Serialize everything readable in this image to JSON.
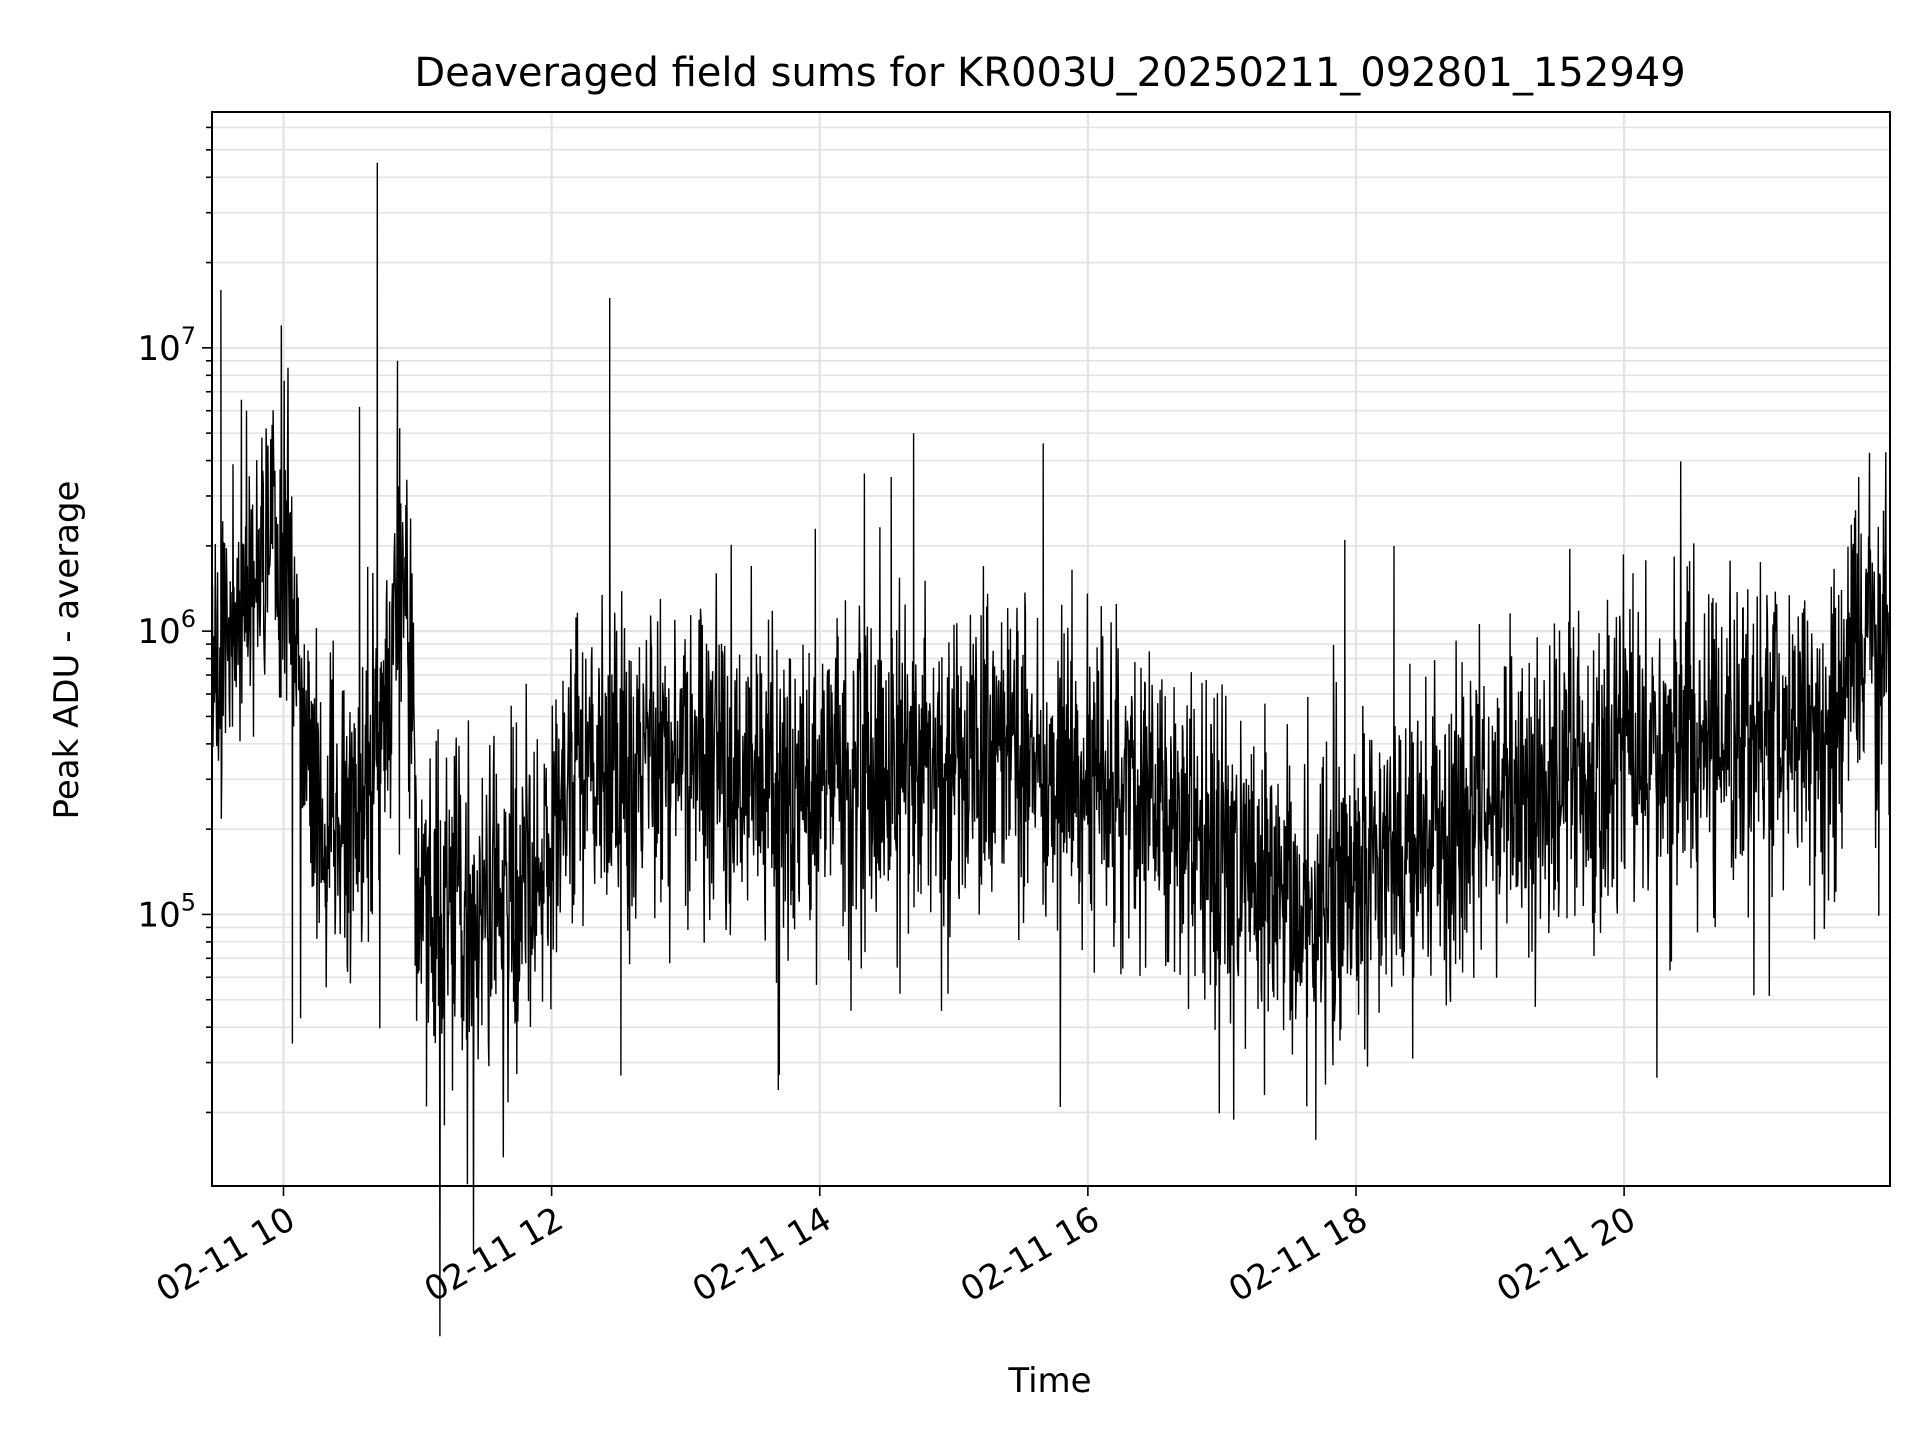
{
  "chart_data": {
    "type": "line",
    "title": "Deaveraged field sums for KR003U_20250211_092801_152949",
    "xlabel": "Time",
    "ylabel": "Peak ADU - average",
    "x_axis_type": "time",
    "y_scale": "log",
    "xlim": [
      "2025-02-11T09:28",
      "2025-02-11T21:59"
    ],
    "ylim": [
      11000,
      68000000
    ],
    "grid": true,
    "legend": "none",
    "x_ticks": [
      {
        "t": "2025-02-11T10:00",
        "label": "02-11 10"
      },
      {
        "t": "2025-02-11T12:00",
        "label": "02-11 12"
      },
      {
        "t": "2025-02-11T14:00",
        "label": "02-11 14"
      },
      {
        "t": "2025-02-11T16:00",
        "label": "02-11 16"
      },
      {
        "t": "2025-02-11T18:00",
        "label": "02-11 18"
      },
      {
        "t": "2025-02-11T20:00",
        "label": "02-11 20"
      }
    ],
    "y_ticks": [
      {
        "value": 100000,
        "base": "10",
        "exp": "5"
      },
      {
        "value": 1000000,
        "base": "10",
        "exp": "6"
      },
      {
        "value": 10000000,
        "base": "10",
        "exp": "7"
      }
    ],
    "series": [
      {
        "color": "#000000",
        "noise_decades": 0.6,
        "baseline": [
          {
            "t": "2025-02-11T09:28",
            "y": 700000
          },
          {
            "t": "2025-02-11T09:40",
            "y": 1200000
          },
          {
            "t": "2025-02-11T09:55",
            "y": 2500000
          },
          {
            "t": "2025-02-11T10:05",
            "y": 1300000
          },
          {
            "t": "2025-02-11T10:10",
            "y": 300000
          },
          {
            "t": "2025-02-11T10:30",
            "y": 200000
          },
          {
            "t": "2025-02-11T10:45",
            "y": 450000
          },
          {
            "t": "2025-02-11T10:55",
            "y": 1500000
          },
          {
            "t": "2025-02-11T11:00",
            "y": 120000
          },
          {
            "t": "2025-02-11T11:30",
            "y": 100000
          },
          {
            "t": "2025-02-11T11:55",
            "y": 150000
          },
          {
            "t": "2025-02-11T12:10",
            "y": 350000
          },
          {
            "t": "2025-02-11T13:00",
            "y": 400000
          },
          {
            "t": "2025-02-11T13:45",
            "y": 280000
          },
          {
            "t": "2025-02-11T14:30",
            "y": 330000
          },
          {
            "t": "2025-02-11T15:30",
            "y": 330000
          },
          {
            "t": "2025-02-11T16:20",
            "y": 280000
          },
          {
            "t": "2025-02-11T17:00",
            "y": 180000
          },
          {
            "t": "2025-02-11T17:40",
            "y": 100000
          },
          {
            "t": "2025-02-11T18:30",
            "y": 180000
          },
          {
            "t": "2025-02-11T19:30",
            "y": 280000
          },
          {
            "t": "2025-02-11T20:30",
            "y": 450000
          },
          {
            "t": "2025-02-11T21:30",
            "y": 420000
          },
          {
            "t": "2025-02-11T21:45",
            "y": 900000
          },
          {
            "t": "2025-02-11T21:59",
            "y": 1000000
          }
        ],
        "spikes": [
          {
            "t": "2025-02-11T09:32",
            "y": 16000000
          },
          {
            "t": "2025-02-11T09:59",
            "y": 12000000
          },
          {
            "t": "2025-02-11T10:04",
            "y": 35000
          },
          {
            "t": "2025-02-11T10:34",
            "y": 6200000
          },
          {
            "t": "2025-02-11T10:38",
            "y": 80000
          },
          {
            "t": "2025-02-11T10:42",
            "y": 45000000
          },
          {
            "t": "2025-02-11T10:51",
            "y": 9000000
          },
          {
            "t": "2025-02-11T10:52",
            "y": 5200000
          },
          {
            "t": "2025-02-11T11:04",
            "y": 21000
          },
          {
            "t": "2025-02-11T11:12",
            "y": 18000
          },
          {
            "t": "2025-02-11T12:26",
            "y": 15000000
          },
          {
            "t": "2025-02-11T12:26",
            "y": 6000000
          },
          {
            "t": "2025-02-11T12:31",
            "y": 27000
          },
          {
            "t": "2025-02-11T13:58",
            "y": 2300000
          },
          {
            "t": "2025-02-11T14:20",
            "y": 3600000
          },
          {
            "t": "2025-02-11T14:32",
            "y": 3500000
          },
          {
            "t": "2025-02-11T14:42",
            "y": 5000000
          },
          {
            "t": "2025-02-11T15:40",
            "y": 4600000
          },
          {
            "t": "2025-02-11T17:38",
            "y": 21000
          },
          {
            "t": "2025-02-11T17:42",
            "y": 16000
          },
          {
            "t": "2025-02-11T17:55",
            "y": 2100000
          },
          {
            "t": "2025-02-11T18:17",
            "y": 2000000
          },
          {
            "t": "2025-02-11T20:04",
            "y": 1600000
          },
          {
            "t": "2025-02-11T21:45",
            "y": 3500000
          }
        ]
      }
    ]
  }
}
